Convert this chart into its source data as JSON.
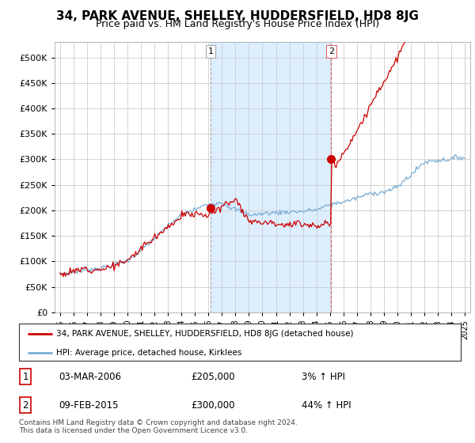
{
  "title": "34, PARK AVENUE, SHELLEY, HUDDERSFIELD, HD8 8JG",
  "subtitle": "Price paid vs. HM Land Registry's House Price Index (HPI)",
  "legend_line1": "34, PARK AVENUE, SHELLEY, HUDDERSFIELD, HD8 8JG (detached house)",
  "legend_line2": "HPI: Average price, detached house, Kirklees",
  "sale1_date": "03-MAR-2006",
  "sale1_price": "£205,000",
  "sale1_hpi": "3% ↑ HPI",
  "sale2_date": "09-FEB-2015",
  "sale2_price": "£300,000",
  "sale2_hpi": "44% ↑ HPI",
  "footer": "Contains HM Land Registry data © Crown copyright and database right 2024.\nThis data is licensed under the Open Government Licence v3.0.",
  "sale1_year": 2006.17,
  "sale1_value": 205000,
  "sale2_year": 2015.1,
  "sale2_value": 300000,
  "property_color": "#cc0000",
  "hpi_color": "#7aadd4",
  "shade_color": "#ddeeff",
  "vline1_color": "#aaaaaa",
  "vline2_color": "#dd6666",
  "ylim": [
    0,
    530000
  ],
  "yticks": [
    0,
    50000,
    100000,
    150000,
    200000,
    250000,
    300000,
    350000,
    400000,
    450000,
    500000
  ],
  "xlim_start": 1994.6,
  "xlim_end": 2025.4,
  "background_color": "#ffffff",
  "grid_color": "#cccccc",
  "title_fontsize": 11,
  "subtitle_fontsize": 9
}
